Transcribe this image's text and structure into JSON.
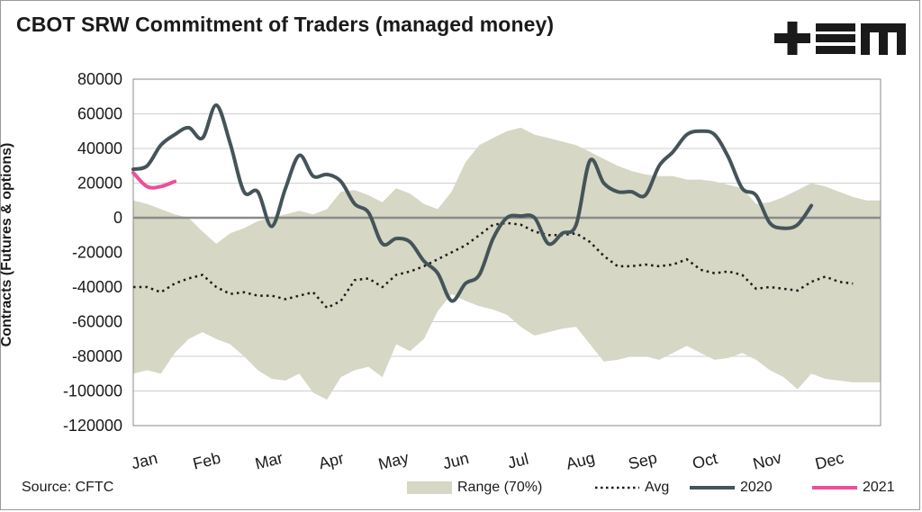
{
  "title": "CBOT SRW Commitment of Traders (managed money)",
  "source": "Source: CFTC",
  "logo_icon": "plus-equals-m-logo",
  "colors": {
    "range": "#d6d7c4",
    "avg": "#1a1a1a",
    "y2020": "#445459",
    "y2021": "#ec4f9a",
    "zero_line": "#8a8a8a",
    "grid": "#cfcfcf"
  },
  "chart_data": {
    "type": "line",
    "ylabel": "Contracts (Futures & options)",
    "xlabel": "",
    "ylim": [
      -120000,
      80000
    ],
    "yticks": [
      80000,
      60000,
      40000,
      20000,
      0,
      -20000,
      -40000,
      -60000,
      -80000,
      -100000,
      -120000
    ],
    "ytick_labels": [
      "80000",
      "60000",
      "40000",
      "20000",
      "0",
      "-20000",
      "-40000",
      "-60000",
      "-80000",
      "-100000",
      "-120000"
    ],
    "months": [
      "Jan",
      "Feb",
      "Mar",
      "Apr",
      "May",
      "Jun",
      "Jul",
      "Aug",
      "Sep",
      "Oct",
      "Nov",
      "Dec"
    ],
    "x_range_weeks": [
      0,
      54
    ],
    "grid": true,
    "legend_position": "bottom",
    "series": [
      {
        "name": "Range (70%)",
        "kind": "band",
        "x": [
          0,
          1,
          2,
          3,
          4,
          5,
          6,
          7,
          8,
          9,
          10,
          11,
          12,
          13,
          14,
          15,
          16,
          17,
          18,
          19,
          20,
          21,
          22,
          23,
          24,
          25,
          26,
          27,
          28,
          29,
          30,
          31,
          32,
          33,
          34,
          35,
          36,
          37,
          38,
          39,
          40,
          41,
          42,
          43,
          44,
          45,
          46,
          47,
          48,
          49,
          50,
          51,
          52,
          53,
          54
        ],
        "upper": [
          10000,
          8000,
          5000,
          2000,
          0,
          -8000,
          -15000,
          -9000,
          -6000,
          -2000,
          0,
          2000,
          4000,
          2000,
          5000,
          15000,
          16000,
          13000,
          9000,
          17000,
          14000,
          8000,
          5000,
          15000,
          32000,
          42000,
          46000,
          50000,
          52000,
          48000,
          46000,
          44000,
          42000,
          38000,
          34000,
          30000,
          27000,
          25000,
          24000,
          24000,
          22000,
          22000,
          21000,
          19000,
          17000,
          8000,
          9000,
          12000,
          16000,
          20000,
          18000,
          15000,
          12000,
          10000,
          10000
        ],
        "lower": [
          -90000,
          -88000,
          -90000,
          -78000,
          -70000,
          -66000,
          -70000,
          -73000,
          -80000,
          -88000,
          -93000,
          -94000,
          -90000,
          -101000,
          -105000,
          -92000,
          -88000,
          -86000,
          -92000,
          -73000,
          -77000,
          -70000,
          -54000,
          -44000,
          -48000,
          -51000,
          -53000,
          -56000,
          -63000,
          -68000,
          -66000,
          -64000,
          -63000,
          -73000,
          -83000,
          -82000,
          -80000,
          -80000,
          -82000,
          -78000,
          -74000,
          -78000,
          -82000,
          -81000,
          -78000,
          -82000,
          -88000,
          -92000,
          -99000,
          -90000,
          -93000,
          -94000,
          -95000,
          -95000,
          -95000
        ]
      },
      {
        "name": "Avg",
        "kind": "dotted",
        "x": [
          0,
          1,
          2,
          3,
          4,
          5,
          6,
          7,
          8,
          9,
          10,
          11,
          12,
          13,
          14,
          15,
          16,
          17,
          18,
          19,
          20,
          21,
          22,
          23,
          24,
          25,
          26,
          27,
          28,
          29,
          30,
          31,
          32,
          33,
          34,
          35,
          36,
          37,
          38,
          39,
          40,
          41,
          42,
          43,
          44,
          45,
          46,
          47,
          48,
          49,
          50,
          51,
          52
        ],
        "values": [
          -40000,
          -40000,
          -43000,
          -38000,
          -35000,
          -33000,
          -40000,
          -44000,
          -43000,
          -45000,
          -45000,
          -47000,
          -45000,
          -43000,
          -52000,
          -48000,
          -36000,
          -35000,
          -40000,
          -33000,
          -31000,
          -28000,
          -24000,
          -20000,
          -16000,
          -10000,
          -4000,
          -3000,
          -4000,
          -8000,
          -10000,
          -10000,
          -9000,
          -14000,
          -22000,
          -28000,
          -28000,
          -27000,
          -28000,
          -27000,
          -24000,
          -30000,
          -32000,
          -31000,
          -33000,
          -41000,
          -40000,
          -41000,
          -42000,
          -37000,
          -34000,
          -37000,
          -38000
        ]
      },
      {
        "name": "2020",
        "kind": "line",
        "x": [
          0,
          1,
          2,
          3,
          4,
          5,
          6,
          7,
          8,
          9,
          10,
          11,
          12,
          13,
          14,
          15,
          16,
          17,
          18,
          19,
          20,
          21,
          22,
          23,
          24,
          25,
          26,
          27,
          28,
          29,
          30,
          31,
          32,
          33,
          34,
          35,
          36,
          37,
          38,
          39,
          40,
          41,
          42,
          43,
          44,
          45,
          46,
          47,
          48,
          49
        ],
        "values": [
          28000,
          30000,
          42000,
          48000,
          52000,
          46000,
          65000,
          43000,
          15000,
          15000,
          -5000,
          17000,
          36000,
          24000,
          25000,
          21000,
          8000,
          3000,
          -15000,
          -12000,
          -14000,
          -25000,
          -32000,
          -48000,
          -38000,
          -33000,
          -12000,
          0,
          1000,
          0,
          -15000,
          -9000,
          -4000,
          33000,
          20000,
          15000,
          15000,
          13000,
          30000,
          38000,
          48000,
          50000,
          48000,
          35000,
          17000,
          13000,
          -3000,
          -6000,
          -4000,
          7000
        ]
      },
      {
        "name": "2021",
        "kind": "line",
        "x": [
          0,
          1,
          2,
          3
        ],
        "values": [
          26000,
          18000,
          18000,
          21000
        ]
      }
    ]
  }
}
